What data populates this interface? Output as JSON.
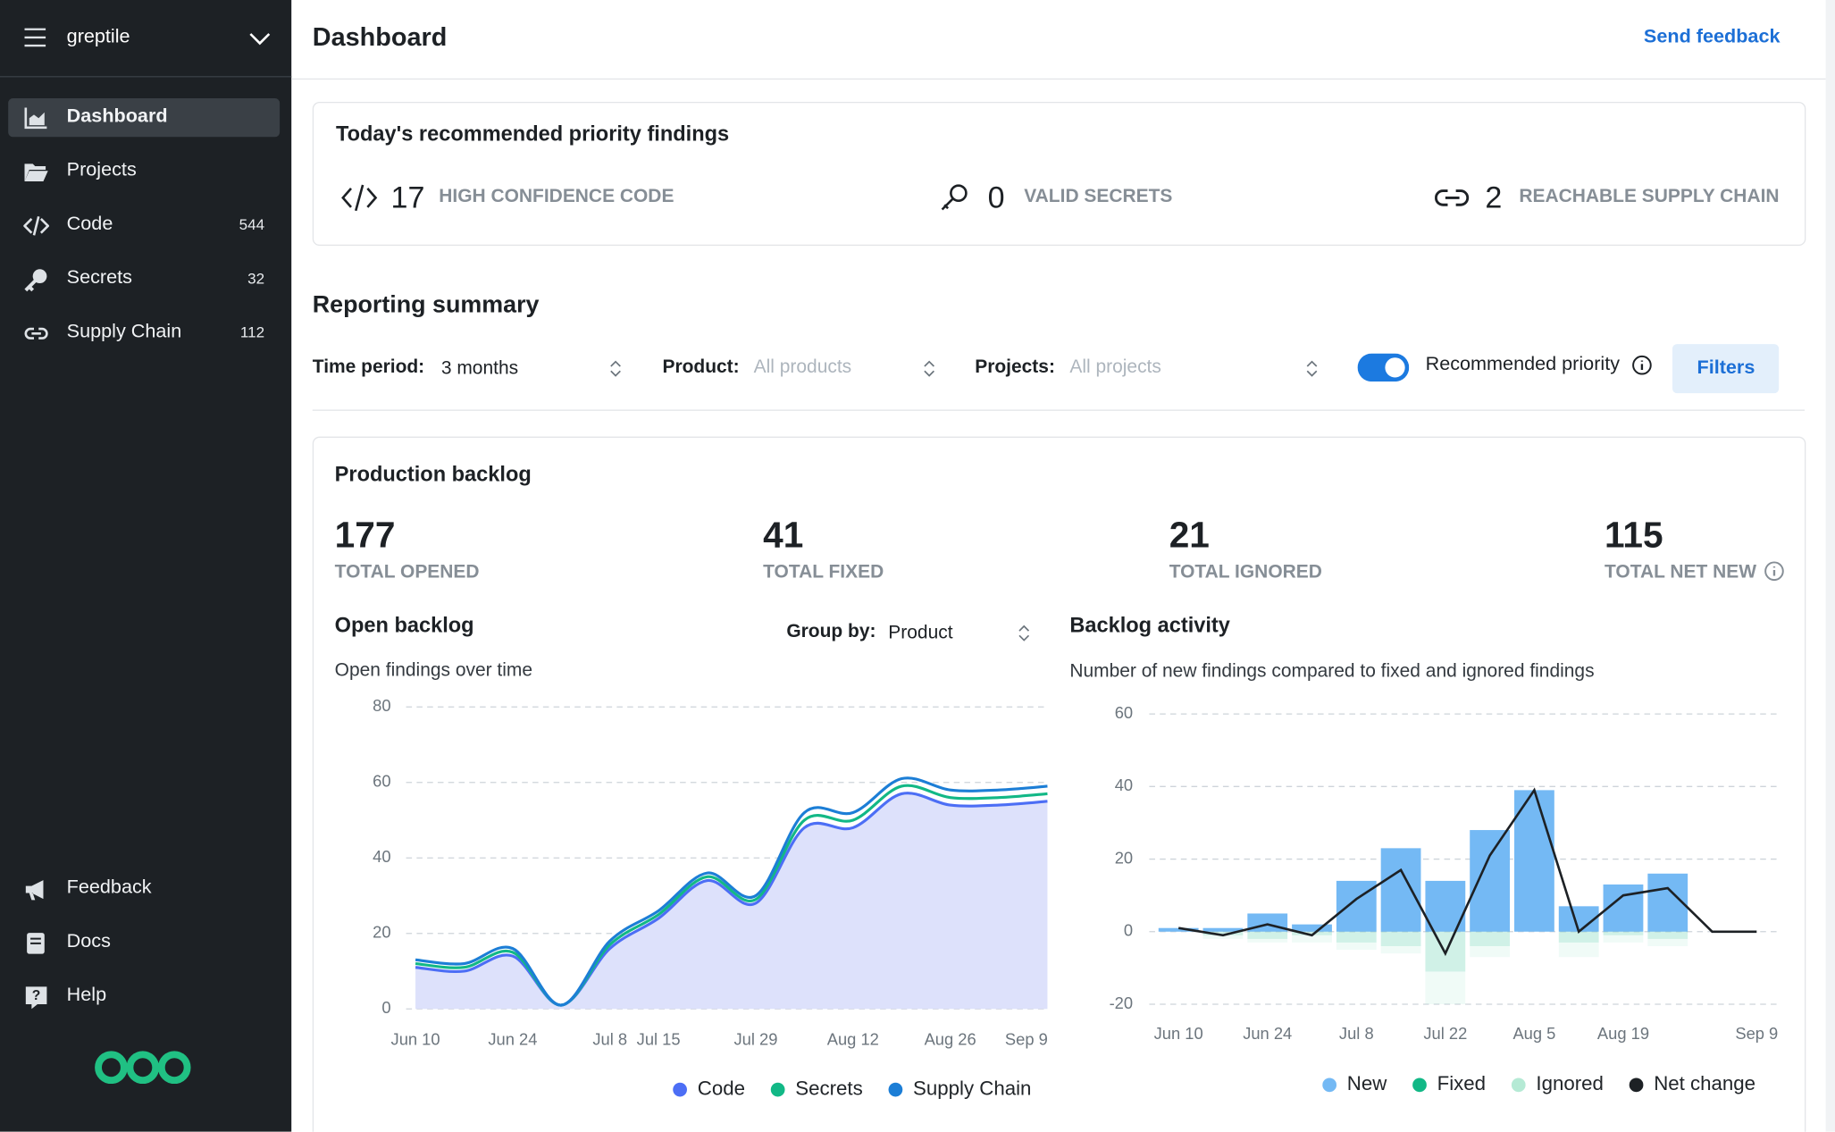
{
  "sidebar": {
    "org": "greptile",
    "nav": [
      {
        "label": "Dashboard"
      },
      {
        "label": "Projects"
      },
      {
        "label": "Code",
        "count": 544
      },
      {
        "label": "Secrets",
        "count": 32
      },
      {
        "label": "Supply Chain",
        "count": 112
      }
    ],
    "footer": [
      {
        "label": "Feedback"
      },
      {
        "label": "Docs"
      },
      {
        "label": "Help"
      }
    ]
  },
  "header": {
    "title": "Dashboard",
    "action": "Send feedback"
  },
  "priority": {
    "title": "Today's recommended priority findings",
    "items": [
      {
        "value": 17,
        "label": "HIGH CONFIDENCE CODE"
      },
      {
        "value": 0,
        "label": "VALID SECRETS"
      },
      {
        "value": 2,
        "label": "REACHABLE SUPPLY CHAIN"
      }
    ]
  },
  "reporting": {
    "title": "Reporting summary",
    "filters": [
      {
        "label": "Time period:",
        "value": "3 months"
      },
      {
        "label": "Product:",
        "placeholder": "All products"
      },
      {
        "label": "Projects:",
        "placeholder": "All projects"
      }
    ],
    "toggle": "Recommended priority",
    "button": "Filters"
  },
  "backlog": {
    "title": "Production backlog",
    "stats": [
      {
        "value": 177,
        "label": "TOTAL OPENED"
      },
      {
        "value": 41,
        "label": "TOTAL FIXED"
      },
      {
        "value": 21,
        "label": "TOTAL IGNORED"
      },
      {
        "value": 115,
        "label": "TOTAL NET NEW"
      }
    ],
    "group_by": {
      "label": "Group by:",
      "value": "Product"
    }
  },
  "chart_data": [
    {
      "type": "area",
      "title": "Open backlog",
      "subtitle": "Open findings over time",
      "categories": [
        "Jun 10",
        null,
        "Jun 24",
        null,
        "Jul 8",
        "Jul 15",
        null,
        "Jul 29",
        null,
        "Aug 12",
        null,
        "Aug 26",
        null,
        "Sep 9"
      ],
      "series": [
        {
          "name": "Code",
          "color": "#4c6ef5",
          "values": [
            11,
            10,
            14,
            1,
            16,
            24,
            34,
            28,
            48,
            48,
            57,
            54,
            54,
            55
          ]
        },
        {
          "name": "Secrets",
          "color": "#12b886",
          "values": [
            1,
            1,
            1,
            0,
            1,
            1,
            1,
            1,
            2,
            2,
            2,
            2,
            2,
            2
          ]
        },
        {
          "name": "Supply Chain",
          "color": "#1c7ed6",
          "values": [
            1,
            1,
            1,
            0,
            1,
            1,
            1,
            1,
            2,
            2,
            2,
            2,
            2,
            2
          ]
        }
      ],
      "area_color": "#dde1fb",
      "ylim": [
        0,
        80
      ],
      "yticks": [
        0,
        20,
        40,
        60,
        80
      ],
      "grid": true
    },
    {
      "type": "bar",
      "title": "Backlog activity",
      "subtitle": "Number of new findings compared to fixed and ignored findings",
      "categories": [
        "Jun 10",
        null,
        "Jun 24",
        null,
        "Jul 8",
        null,
        "Jul 22",
        null,
        "Aug 5",
        null,
        "Aug 19",
        null,
        null,
        "Sep 9"
      ],
      "series": [
        {
          "name": "New",
          "color": "#74b9f4",
          "values": [
            1,
            1,
            5,
            2,
            14,
            23,
            14,
            28,
            39,
            7,
            13,
            16,
            0,
            0
          ]
        },
        {
          "name": "Fixed",
          "color": "#12b886",
          "values": [
            0,
            -1,
            -2,
            -1,
            -3,
            -4,
            -11,
            -4,
            0,
            -3,
            -1,
            -2,
            0,
            0
          ]
        },
        {
          "name": "Ignored",
          "color": "#b5ead5",
          "values": [
            0,
            -1,
            -1,
            -2,
            -2,
            -2,
            -9,
            -3,
            0,
            -4,
            -2,
            -2,
            0,
            0
          ]
        },
        {
          "name": "Net change",
          "color": "#1d2125",
          "type": "line",
          "values": [
            1,
            -1,
            2,
            -1,
            9,
            17,
            -6,
            21,
            39,
            0,
            10,
            12,
            0,
            0
          ]
        }
      ],
      "ylim": [
        -20,
        60
      ],
      "yticks": [
        -20,
        0,
        20,
        40,
        60
      ],
      "grid": true
    }
  ]
}
